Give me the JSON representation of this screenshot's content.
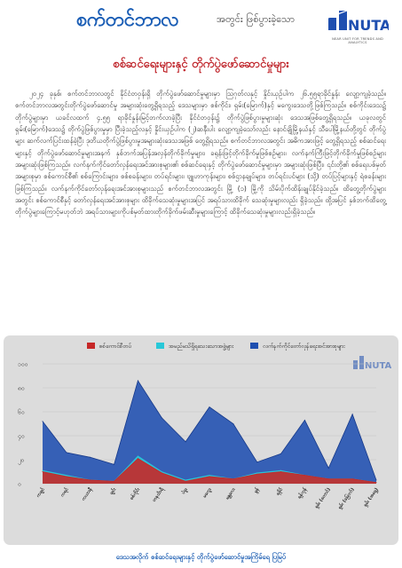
{
  "header": {
    "brand_title": "စက်တင်ဘာလ",
    "brand_tagline": "အတွင်း ဖြစ်ပွားခဲ့သော",
    "logo_text": "NUTA",
    "logo_subtext": "NEAR UNIT FOR TRENDS AND ANALYTICS"
  },
  "subtitle": "စစ်ဆင်ရေးများနှင့် တိုက်ပွဲဖော်ဆောင်မှုများ",
  "paragraph": "၂၀၂၄ ခုနှစ်၊ စက်တင်ဘာလတွင် နိုင်ငံတဝှန်းရှိ တိုက်ပွဲဖော်ဆောင်မှုများမှာ ဩဂုတ်လနှင့် နှိုင်းယှဉ်ပါက ၂၆.၅၅ရာခိုင်နှုန်း လျော့ကျခဲ့သည်။ စက်တင်ဘာလအတွင်းတိုက်ပွဲဖော်ဆောင်မှု အများဆုံးတွေ့ရှိရသည့် ဒေသများမှာ စစ်ကိုင်း၊ ရှမ်း(မြောက်)နှင့် မကွေးဒေသတို့ဖြစ်ကြသည်။ စစ်ကိုင်းဒေသ၌ တိုက်ပွဲများမှာ ယခင်လထက် ၄.၅၅ ရာခိုင်နှုန်းမြင့်တက်လာခဲ့ပြီး နိုင်ငံတဝှန်း၌ တိုက်ပွဲဖြစ်ပွားမှုများဆုံး ဒေသအဖြစ်တွေ့ရှိရသည်။ ယခုလတွင် ရှမ်း(မြောက်)ဒေသ၌ တိုက်ပွဲဖြစ်ပွားမှုမှာ ပြီးခဲ့သည့်လနှင့် နှိုင်းယှဉ်ပါက (၂)ဆနီးပါး လျော့ကျခဲ့သော်လည်း နောင်ချိုမြို့နယ်နှင့် သီပေါမြို့နယ်တို့တွင် တိုက်ပွဲများ ဆက်လက်ပြင်းထန်ခဲ့ပြီး ဒုတိယတိုက်ပွဲဖြစ်ပွားမှုအများဆုံးဒေသအဖြစ် တွေ့ရှိရသည်။ စက်တင်ဘာလအတွင်း အဓိကအားဖြင့် တွေ့ရှိရသည့် စစ်ဆင်ရေးများနှင့် တိုက်ပွဲဖော်ဆောင်မှုများအနက် နှစ်ဘက်အပြန်အလှန်တိုက်ခိုက်မှုများ၊ ခရုန်းဖြင့်တိုက်ခိုက်မှုဖြစ်စဉ်များ၊ လက်နက်ကြီးဖြင့်တိုက်ခိုက်မှုဖြစ်စဉ်များ အများဆုံးဖြစ်ကြသည်။ လက်နက်ကိုင်တော်လှန်ရေးအင်အားစုများ၏ စစ်ဆင်ရေးနှင့် တိုက်ပွဲဖော်ဆောင်မှုများမှာ အများဆုံးဖြစ်ပြီး၊ ၎င်းတို့၏ စစ်ရေးပစ်မှတ်အများစုမှာ စစ်ကောင်စီ၏ စစ်ကြောင်းများ၊ စစ်စခန်းများ၊ တပ်ရင်းများ၊ ဗျူဟာကုန်းများ၊ စစ်ဌာနချုပ်များ၊ တပ်ရင်းပင်များ (သို့) တပ်ပြင့်များနှင့် ရဲစခန်းများဖြစ်ကြသည်။ လက်နက်ကိုင်တော်လှန်ရေးအင်အားစုများသည် စက်တင်ဘာလအတွင်း မြို့ (၁) မြို့ကို သိမ်းပိုက်ထိန်းချုပ်နိုင်ခဲ့သည်။ ထိတွေ့တိုက်ပွဲများအတွင်း စစ်ကောင်စီနှင့် တော်လှန်ရေးအင်အားစုများ ထိခိုက်သေဆုံးမှုများအပြင် အရပ်သားထိခိုက် သေဆုံးမှုများလည်း ရှိခဲ့သည်။ ထို့အပြင် နှစ်ဘက်ထိတွေ့တိုက်ပွဲများကြောင့်မဟုတ်ဘဲ အရပ်သားများကိုပစ်မှတ်ထားတိုက်ခိုက်ဖမ်းဆီးမှုများကြောင့် ထိခိုက်သေဆုံးမှုများလည်းရှိခဲ့သည်။",
  "chart_data": {
    "type": "area",
    "stacked": false,
    "caption": "ဒေသအလိုက် စစ်ဆင်ရေးများနှင့် တိုက်ပွဲဖော်ဆောင်မှုအကြိမ်ရေ ပြမြပ်",
    "legend_position": "top",
    "ylim": [
      0,
      100
    ],
    "yticks": [
      "၁၀၀",
      "၈၀",
      "၆၀",
      "၄၀",
      "၂၀",
      "၀"
    ],
    "categories": [
      "ကချင်",
      "ကရင်",
      "ကယားနီ",
      "ချင်း",
      "စစ်ကိုင်း",
      "တနင်္သာရီ",
      "ပဲခူး",
      "မကွေး",
      "မန္တလေး",
      "မွန်",
      "ရခိုင်",
      "ရန်ကုန်",
      "ရှမ်း (တောင်)",
      "ရှမ်း (မြောက်)",
      "ရှမ်း (အရှေ့)"
    ],
    "series": [
      {
        "name": "စစ်ကောင်စီတပ်",
        "color": "#c62828",
        "values": [
          10,
          6,
          3,
          2,
          21,
          9,
          2,
          6,
          4,
          8,
          10,
          7,
          4,
          4,
          1
        ]
      },
      {
        "name": "အမည်မသိရှိရသေးသောအဖွဲ့များ",
        "color": "#29c8d8",
        "values": [
          11,
          7,
          3,
          2,
          23,
          10,
          3,
          7,
          4,
          9,
          11,
          7,
          4,
          4,
          1
        ]
      },
      {
        "name": "လက်နက်ကိုင်တော်လှန်ရေးအင်အားစုများ",
        "color": "#1f4fb0",
        "values": [
          52,
          26,
          22,
          16,
          86,
          55,
          35,
          64,
          50,
          18,
          25,
          53,
          13,
          58,
          3
        ]
      }
    ]
  }
}
